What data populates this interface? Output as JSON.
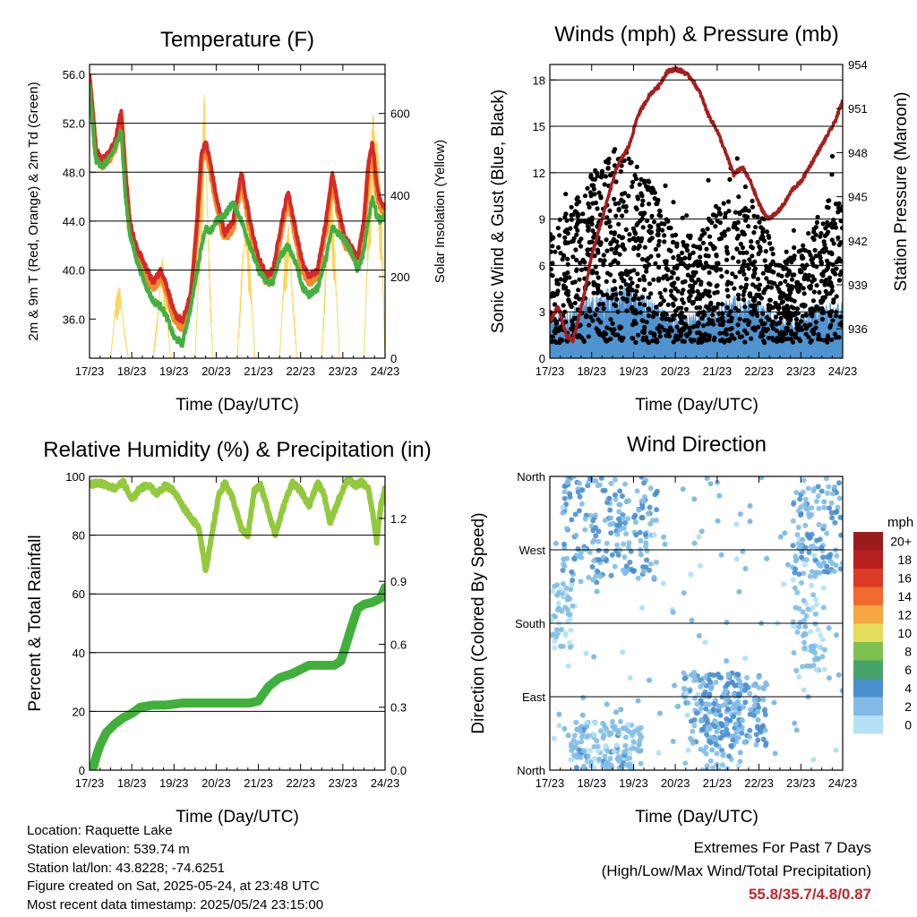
{
  "colors": {
    "temp_2m": "#d42a28",
    "temp_9m": "#f28a2c",
    "dewpoint": "#44b041",
    "solar": "#fad75c",
    "wind": "#000000",
    "gust_band": "#4f94d0",
    "pressure": "#a51f1f",
    "rh": "#93c93c",
    "precip": "#41b03b",
    "gridline": "#000000",
    "extremes_text": "#c0262d"
  },
  "time_ticks": [
    "17/23",
    "18/23",
    "19/23",
    "20/23",
    "21/23",
    "22/23",
    "23/23",
    "24/23"
  ],
  "footer": {
    "location": "Location: Raquette Lake",
    "elevation": "Station elevation: 539.74 m",
    "latlon": "Station lat/lon: 43.8228; -74.6251",
    "created": "Figure created on Sat, 2025-05-24, at 23:48 UTC",
    "recent": "Most recent data timestamp: 2025/05/24 23:15:00",
    "extremes_title": "Extremes For Past 7 Days",
    "extremes_subtitle": "(High/Low/Max Wind/Total Precipitation)",
    "extremes_value": "55.8/35.7/4.8/0.87"
  },
  "chart_data": [
    {
      "type": "line",
      "title": "Temperature (F)",
      "xlabel": "Time (Day/UTC)",
      "ylabel": "2m & 9m T (Red, Orange) & 2m Td (Green)",
      "y2label": "Solar Insolation (Yellow)",
      "xlim": [
        0,
        7
      ],
      "ylim": [
        32.8,
        56.8
      ],
      "y2lim": [
        0,
        720
      ],
      "yticks": [
        36.0,
        40.0,
        44.0,
        48.0,
        52.0,
        56.0
      ],
      "yticklabels": [
        "36.0",
        "40.0",
        "44.0",
        "48.0",
        "52.0",
        "56.0"
      ],
      "y2ticks": [
        0,
        200,
        400,
        600
      ],
      "y2ticklabels": [
        "0",
        "200",
        "400",
        "600"
      ],
      "series": [
        {
          "key": "temp",
          "color": "#d42a28",
          "x": [
            0,
            0.05,
            0.15,
            0.3,
            0.45,
            0.6,
            0.75,
            0.85,
            0.95,
            1.1,
            1.3,
            1.5,
            1.7,
            1.85,
            2.0,
            2.2,
            2.4,
            2.55,
            2.65,
            2.75,
            2.85,
            3.0,
            3.2,
            3.4,
            3.6,
            3.8,
            4.0,
            4.2,
            4.35,
            4.5,
            4.7,
            4.9,
            5.05,
            5.2,
            5.4,
            5.6,
            5.75,
            5.9,
            6.05,
            6.2,
            6.35,
            6.5,
            6.6,
            6.7,
            6.8,
            6.9,
            7.0
          ],
          "y": [
            56.0,
            54.0,
            50.0,
            49.0,
            49.5,
            50.5,
            53.0,
            48.0,
            44.0,
            42.0,
            40.5,
            39.0,
            40.0,
            38.5,
            36.5,
            35.8,
            38.0,
            44.0,
            49.5,
            50.5,
            49.0,
            46.0,
            43.0,
            44.0,
            48.0,
            44.0,
            41.0,
            39.5,
            40.0,
            43.0,
            46.5,
            43.0,
            40.5,
            39.5,
            40.0,
            44.0,
            48.0,
            45.0,
            42.5,
            42.0,
            41.0,
            44.0,
            48.5,
            50.5,
            47.0,
            45.5,
            45.0
          ]
        },
        {
          "key": "dewpoint",
          "color": "#44b041",
          "x": [
            0,
            0.05,
            0.15,
            0.3,
            0.45,
            0.6,
            0.75,
            0.85,
            0.95,
            1.1,
            1.3,
            1.5,
            1.7,
            1.85,
            2.0,
            2.2,
            2.4,
            2.55,
            2.65,
            2.75,
            2.85,
            3.0,
            3.2,
            3.4,
            3.6,
            3.8,
            4.0,
            4.2,
            4.35,
            4.5,
            4.7,
            4.9,
            5.05,
            5.2,
            5.4,
            5.6,
            5.75,
            5.9,
            6.05,
            6.2,
            6.35,
            6.5,
            6.6,
            6.7,
            6.8,
            6.9,
            7.0
          ],
          "y": [
            55.0,
            53.0,
            49.0,
            48.5,
            49.0,
            50.0,
            51.5,
            46.0,
            43.0,
            41.0,
            39.0,
            37.5,
            37.0,
            36.0,
            34.5,
            34.0,
            37.0,
            40.0,
            42.0,
            43.5,
            43.0,
            44.0,
            44.5,
            45.5,
            44.0,
            42.0,
            40.0,
            39.0,
            39.0,
            41.0,
            42.0,
            40.5,
            38.5,
            38.0,
            38.5,
            41.0,
            43.5,
            43.0,
            42.5,
            41.5,
            40.0,
            41.5,
            44.0,
            46.0,
            44.5,
            44.0,
            44.5
          ]
        },
        {
          "key": "solar",
          "color": "#fad75c",
          "x": [
            0,
            0.3,
            0.5,
            0.62,
            0.72,
            0.82,
            0.92,
            1.1,
            1.3,
            1.5,
            1.62,
            1.72,
            1.82,
            1.92,
            2.1,
            2.3,
            2.5,
            2.62,
            2.72,
            2.82,
            2.92,
            3.1,
            3.3,
            3.5,
            3.62,
            3.72,
            3.82,
            3.92,
            4.1,
            4.3,
            4.5,
            4.62,
            4.72,
            4.82,
            4.92,
            5.1,
            5.3,
            5.5,
            5.62,
            5.72,
            5.82,
            5.92,
            6.1,
            6.3,
            6.5,
            6.62,
            6.72,
            6.82,
            6.92,
            7.0
          ],
          "y": [
            0,
            0,
            0,
            150,
            180,
            80,
            0,
            0,
            0,
            0,
            120,
            260,
            150,
            0,
            0,
            0,
            0,
            320,
            700,
            300,
            0,
            0,
            0,
            0,
            260,
            380,
            200,
            0,
            0,
            0,
            0,
            250,
            340,
            150,
            0,
            0,
            0,
            0,
            300,
            450,
            250,
            0,
            0,
            0,
            0,
            400,
            640,
            550,
            350,
            0
          ]
        }
      ]
    },
    {
      "type": "scatter",
      "title": "Winds (mph) & Pressure (mb)",
      "xlabel": "Time (Day/UTC)",
      "ylabel": "Sonic Wind & Gust (Blue, Black)",
      "y2label": "Station Pressure (Maroon)",
      "xlim": [
        0,
        7
      ],
      "ylim": [
        0,
        19
      ],
      "y2lim": [
        934,
        954
      ],
      "yticks": [
        0,
        3,
        6,
        9,
        12,
        15,
        18
      ],
      "yticklabels": [
        "0",
        "3",
        "6",
        "9",
        "12",
        "15",
        "18"
      ],
      "y2ticks": [
        936,
        939,
        942,
        945,
        948,
        951,
        954
      ],
      "y2ticklabels": [
        "936",
        "939",
        "942",
        "945",
        "948",
        "951",
        "954"
      ],
      "gust_envelope": {
        "x": [
          0,
          0.5,
          1.0,
          1.5,
          2.0,
          2.5,
          3.0,
          3.5,
          4.0,
          4.5,
          5.0,
          5.5,
          6.0,
          6.5,
          7.0
        ],
        "y": [
          8,
          10,
          12,
          14,
          13,
          11,
          8,
          8,
          10,
          11,
          10,
          6,
          7,
          10,
          11
        ]
      },
      "sustained_envelope": {
        "x": [
          0,
          0.5,
          1.0,
          1.5,
          2.0,
          2.5,
          3.0,
          3.5,
          4.0,
          4.5,
          5.0,
          5.5,
          6.0,
          6.5,
          7.0
        ],
        "y": [
          2.5,
          3,
          4,
          4.5,
          4.5,
          3.5,
          2.5,
          3,
          3.5,
          4,
          3.5,
          2.5,
          3,
          3.5,
          3.5
        ]
      },
      "pressure": {
        "x": [
          0,
          0.2,
          0.4,
          0.55,
          0.8,
          1.0,
          1.3,
          1.6,
          1.9,
          2.1,
          2.4,
          2.6,
          2.8,
          3.0,
          3.2,
          3.4,
          3.6,
          3.8,
          4.0,
          4.2,
          4.4,
          4.6,
          4.8,
          5.0,
          5.2,
          5.4,
          5.6,
          5.8,
          6.0,
          6.2,
          6.4,
          6.6,
          6.8,
          7.0
        ],
        "y": [
          936.5,
          937.5,
          935.5,
          935.2,
          938.0,
          941.0,
          944.0,
          947.0,
          948.5,
          950.5,
          952.0,
          952.5,
          953.5,
          953.7,
          953.5,
          953.0,
          952.0,
          950.5,
          949.5,
          948.0,
          946.5,
          947.0,
          946.0,
          944.5,
          943.5,
          943.8,
          944.5,
          945.5,
          946.0,
          947.0,
          948.0,
          949.0,
          950.0,
          951.5
        ]
      }
    },
    {
      "type": "line",
      "title": "Relative Humidity (%) & Precipitation (in)",
      "xlabel": "Time (Day/UTC)",
      "ylabel": "Percent & Total Rainfall",
      "xlim": [
        0,
        7
      ],
      "ylim": [
        0,
        100
      ],
      "y2lim": [
        0,
        1.4
      ],
      "yticks": [
        0,
        20,
        40,
        60,
        80,
        100
      ],
      "yticklabels": [
        "0",
        "20",
        "40",
        "60",
        "80",
        "100"
      ],
      "y2ticks": [
        0.0,
        0.3,
        0.6,
        0.9,
        1.2
      ],
      "y2ticklabels": [
        "0.0",
        "0.3",
        "0.6",
        "0.9",
        "1.2"
      ],
      "series": [
        {
          "key": "rh",
          "color": "#93c93c",
          "x": [
            0,
            0.2,
            0.4,
            0.6,
            0.8,
            1.0,
            1.2,
            1.4,
            1.6,
            1.8,
            2.0,
            2.2,
            2.4,
            2.6,
            2.75,
            2.9,
            3.05,
            3.2,
            3.4,
            3.6,
            3.75,
            3.9,
            4.05,
            4.2,
            4.4,
            4.6,
            4.8,
            5.0,
            5.2,
            5.4,
            5.55,
            5.7,
            5.9,
            6.1,
            6.3,
            6.45,
            6.6,
            6.7,
            6.8,
            6.9,
            7.0
          ],
          "y": [
            97,
            98,
            97,
            96,
            98,
            92,
            96,
            97,
            94,
            97,
            95,
            90,
            86,
            82,
            68,
            80,
            93,
            98,
            92,
            82,
            80,
            95,
            97,
            90,
            80,
            90,
            98,
            95,
            90,
            98,
            94,
            84,
            92,
            99,
            97,
            98,
            96,
            88,
            78,
            90,
            96
          ]
        },
        {
          "key": "precip",
          "color": "#41b03b",
          "x": [
            0,
            0.1,
            0.15,
            0.25,
            0.4,
            0.6,
            0.8,
            1.0,
            1.2,
            1.5,
            1.8,
            2.2,
            2.6,
            3.0,
            3.4,
            3.8,
            4.0,
            4.1,
            4.25,
            4.5,
            4.8,
            5.0,
            5.2,
            5.5,
            5.8,
            5.95,
            6.05,
            6.2,
            6.35,
            6.5,
            6.7,
            6.9,
            7.0
          ],
          "y": [
            0.0,
            0.02,
            0.06,
            0.12,
            0.18,
            0.22,
            0.25,
            0.27,
            0.3,
            0.31,
            0.31,
            0.32,
            0.32,
            0.32,
            0.32,
            0.32,
            0.33,
            0.36,
            0.4,
            0.44,
            0.46,
            0.48,
            0.5,
            0.5,
            0.5,
            0.52,
            0.58,
            0.68,
            0.77,
            0.79,
            0.8,
            0.82,
            0.87
          ]
        }
      ]
    },
    {
      "type": "scatter",
      "title": "Wind Direction",
      "xlabel": "Time (Day/UTC)",
      "ylabel": "Direction (Colored By Speed)",
      "xlim": [
        0,
        7
      ],
      "ylim": [
        0,
        360
      ],
      "yticks": [
        0,
        90,
        180,
        270,
        360
      ],
      "yticklabels": [
        "North",
        "East",
        "South",
        "West",
        "North"
      ],
      "legend": {
        "title": "mph",
        "labels": [
          "0",
          "2",
          "4",
          "6",
          "8",
          "10",
          "12",
          "14",
          "16",
          "18",
          "20+"
        ],
        "colors": [
          "#b5e1f6",
          "#82bce6",
          "#4a8fce",
          "#47a468",
          "#7dc04f",
          "#e4dd5b",
          "#f6a544",
          "#f16a2e",
          "#db3a24",
          "#b81f1f",
          "#9b1a1a"
        ]
      },
      "clusters": [
        {
          "x": [
            0,
            0.6
          ],
          "dir": [
            150,
            230
          ],
          "speed": 1.5
        },
        {
          "x": [
            0.3,
            2.6
          ],
          "dir": [
            230,
            360
          ],
          "speed": 3.0
        },
        {
          "x": [
            0.5,
            2.2
          ],
          "dir": [
            0,
            60
          ],
          "speed": 2.0
        },
        {
          "x": [
            3.2,
            4.6
          ],
          "dir": [
            0,
            120
          ],
          "speed": 2.5
        },
        {
          "x": [
            3.6,
            5.2
          ],
          "dir": [
            30,
            120
          ],
          "speed": 3.5
        },
        {
          "x": [
            5.8,
            6.6
          ],
          "dir": [
            120,
            260
          ],
          "speed": 1.5
        },
        {
          "x": [
            5.8,
            7.0
          ],
          "dir": [
            240,
            360
          ],
          "speed": 2.5
        }
      ]
    }
  ]
}
